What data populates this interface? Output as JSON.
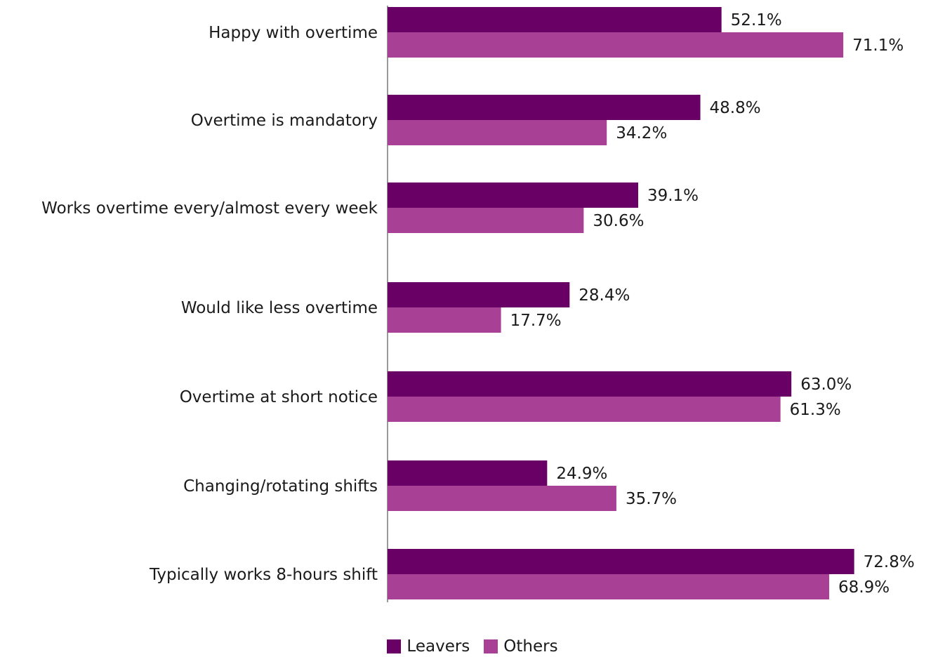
{
  "chart_data": {
    "type": "bar",
    "orientation": "horizontal",
    "categories": [
      "Happy with overtime",
      "Overtime is mandatory",
      "Works overtime every/almost every week",
      "Would like less overtime",
      "Overtime at short notice",
      "Changing/rotating shifts",
      "Typically works 8-hours shift"
    ],
    "series": [
      {
        "name": "Leavers",
        "color": "#680066",
        "values": [
          52.1,
          48.8,
          39.1,
          28.4,
          63.0,
          24.9,
          72.8
        ],
        "labels": [
          "52.1%",
          "48.8%",
          "39.1%",
          "28.4%",
          "63.0%",
          "24.9%",
          "72.8%"
        ]
      },
      {
        "name": "Others",
        "color": "#a84196",
        "values": [
          71.1,
          34.2,
          30.6,
          17.7,
          61.3,
          35.7,
          68.9
        ],
        "labels": [
          "71.1%",
          "34.2%",
          "30.6%",
          "17.7%",
          "61.3%",
          "35.7%",
          "68.9%"
        ]
      }
    ],
    "xlim": [
      0,
      100
    ],
    "grid": false,
    "legend_position": "bottom-center"
  }
}
